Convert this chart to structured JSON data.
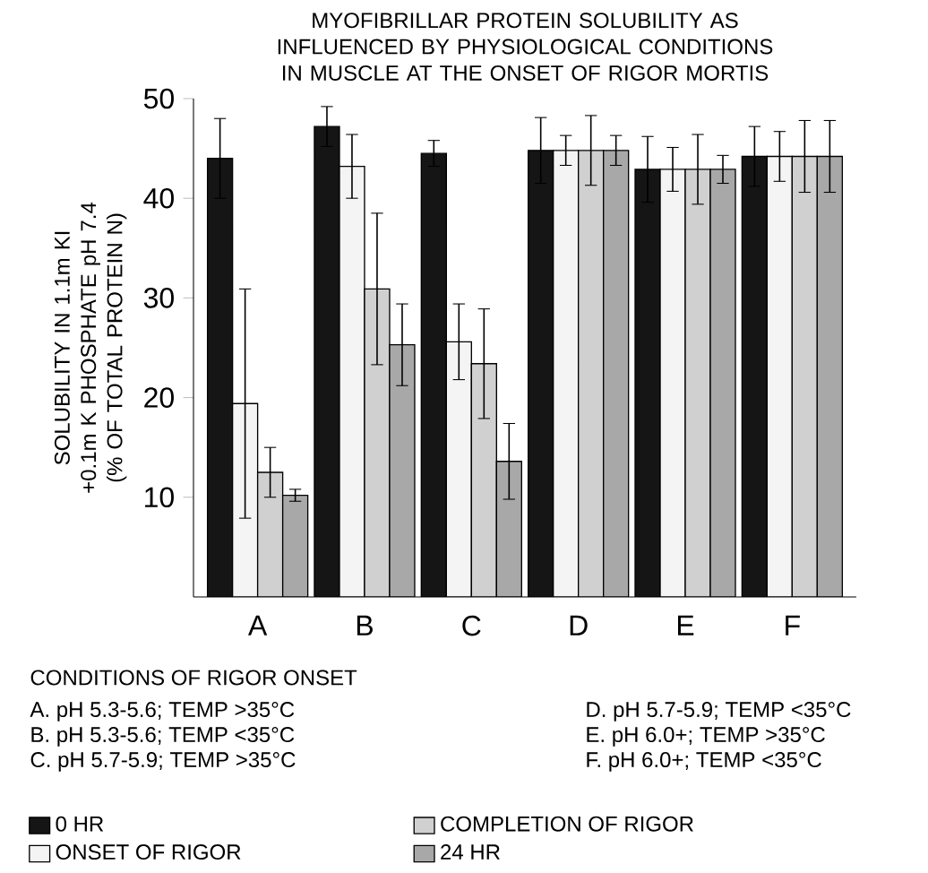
{
  "chart_data": {
    "type": "bar",
    "title": "MYOFIBRILLAR PROTEIN SOLUBILITY AS INFLUENCED BY PHYSIOLOGICAL CONDITIONS IN MUSCLE AT THE ONSET OF RIGOR MORTIS",
    "ylabel": "SOLUBILITY IN 1.1m KI +0.1m K PHOSPHATE pH 7.4 (% OF TOTAL PROTEIN N)",
    "categories": [
      "A",
      "B",
      "C",
      "D",
      "E",
      "F"
    ],
    "series": [
      {
        "name": "0 HR",
        "color": "#151515",
        "values": [
          44,
          47.2,
          44.5,
          44.8,
          42.9,
          44.2
        ],
        "errors": [
          4,
          2,
          1.3,
          3.3,
          3.3,
          3
        ]
      },
      {
        "name": "ONSET OF RIGOR",
        "color": "#f4f4f4",
        "values": [
          19.4,
          43.2,
          25.6,
          44.8,
          42.9,
          44.2
        ],
        "errors": [
          11.5,
          3.2,
          3.8,
          1.5,
          2.2,
          2.5
        ]
      },
      {
        "name": "COMPLETION OF RIGOR",
        "color": "#d0d0d0",
        "values": [
          12.5,
          30.9,
          23.4,
          44.8,
          42.9,
          44.2
        ],
        "errors": [
          2.5,
          7.6,
          5.5,
          3.5,
          3.5,
          3.6
        ]
      },
      {
        "name": "24 HR",
        "color": "#a8a8a8",
        "values": [
          10.2,
          25.3,
          13.6,
          44.8,
          42.9,
          44.2
        ],
        "errors": [
          0.6,
          4.1,
          3.8,
          1.5,
          1.4,
          3.6
        ]
      }
    ],
    "ylim": [
      0,
      50
    ],
    "yticks": [
      10,
      20,
      30,
      40,
      50
    ],
    "legend": "bottom",
    "annotations": [
      "CONDITIONS OF RIGOR ONSET",
      "A. pH 5.3-5.6; TEMP >35°C",
      "B. pH 5.3-5.6; TEMP <35°C",
      "C. pH 5.7-5.9; TEMP >35°C",
      "D. pH 5.7-5.9; TEMP <35°C",
      "E. pH 6.0+; TEMP >35°C",
      "F. pH 6.0+; TEMP <35°C"
    ]
  }
}
